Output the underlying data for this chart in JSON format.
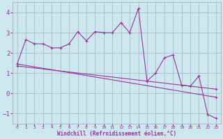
{
  "xlabel": "Windchill (Refroidissement éolien,°C)",
  "bg_color": "#cce8ee",
  "grid_color": "#aabbcc",
  "line_color": "#993399",
  "xlim": [
    -0.5,
    23.5
  ],
  "ylim": [
    -1.5,
    4.5
  ],
  "xticks": [
    0,
    1,
    2,
    3,
    4,
    5,
    6,
    7,
    8,
    9,
    10,
    11,
    12,
    13,
    14,
    15,
    16,
    17,
    18,
    19,
    20,
    21,
    22,
    23
  ],
  "yticks": [
    -1,
    0,
    1,
    2,
    3,
    4
  ],
  "series1_x": [
    0,
    1,
    2,
    3,
    4,
    5,
    6,
    7,
    8,
    9,
    10,
    11,
    12,
    13,
    14,
    15,
    16,
    17,
    18,
    19,
    20,
    21,
    22,
    23
  ],
  "series1_y": [
    1.45,
    2.65,
    2.45,
    2.45,
    2.25,
    2.25,
    2.45,
    3.05,
    2.6,
    3.05,
    3.0,
    3.0,
    3.5,
    3.0,
    4.2,
    0.6,
    1.0,
    1.75,
    1.9,
    0.4,
    0.35,
    0.85,
    -1.05,
    -1.25
  ],
  "series2_x": [
    0,
    23
  ],
  "series2_y": [
    1.45,
    -0.2
  ],
  "series3_x": [
    0,
    23
  ],
  "series3_y": [
    1.35,
    0.2
  ]
}
